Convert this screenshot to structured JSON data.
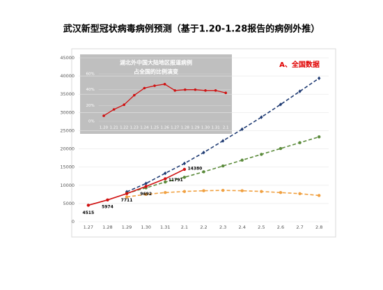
{
  "chart_data": [
    {
      "type": "line",
      "title": "武汉新型冠状病毒病例预测（基于1.20-1.28报告的病例外推）",
      "annotation": "A、全国数据",
      "categories": [
        "1.27",
        "1.28",
        "1.29",
        "1.30",
        "1.31",
        "2.1",
        "2.2",
        "2.3",
        "2.4",
        "2.5",
        "2.6",
        "2.7",
        "2.8"
      ],
      "ylim": [
        0,
        45000
      ],
      "yticks": [
        0,
        5000,
        10000,
        15000,
        20000,
        25000,
        30000,
        35000,
        40000,
        45000
      ],
      "grid": true,
      "series": [
        {
          "color": "#1f3b73",
          "dashed": true,
          "marker": "diamond",
          "values": [
            null,
            null,
            8200,
            10500,
            13300,
            16000,
            19000,
            22200,
            25400,
            28700,
            32200,
            35800,
            39400
          ]
        },
        {
          "color": "#5a8a3a",
          "dashed": true,
          "marker": "circle",
          "values": [
            null,
            null,
            7800,
            9300,
            10900,
            12200,
            13700,
            15300,
            16900,
            18500,
            20100,
            21700,
            23300
          ]
        },
        {
          "color": "#f0a040",
          "dashed": true,
          "marker": "circle",
          "values": [
            null,
            null,
            6800,
            7500,
            8000,
            8300,
            8500,
            8600,
            8500,
            8300,
            8000,
            7700,
            7200
          ]
        },
        {
          "color": "#d01010",
          "dashed": false,
          "marker": "circle",
          "data_labels": true,
          "values": [
            4515,
            5974,
            7711,
            9692,
            11791,
            14380,
            null,
            null,
            null,
            null,
            null,
            null,
            null
          ]
        }
      ]
    },
    {
      "type": "line",
      "title": "湖北外中国大陆地区报道病例",
      "subtitle": "占全国的比例演变",
      "categories": [
        "1.20",
        "1.21",
        "1.22",
        "1.23",
        "1.24",
        "1.25",
        "1.26",
        "1.27",
        "1.28",
        "1.29",
        "1.30",
        "1.31",
        "2.1"
      ],
      "ylim": [
        0,
        60
      ],
      "yticks": [
        {
          "value": 0,
          "label": "0%"
        },
        {
          "value": 20,
          "label": "20%"
        },
        {
          "value": 40,
          "label": "40%"
        },
        {
          "value": 60,
          "label": "60%"
        }
      ],
      "grid": true,
      "series": [
        {
          "color": "#d01010",
          "dashed": false,
          "marker": "circle",
          "values": [
            7,
            15,
            21,
            33,
            42,
            45,
            47,
            39,
            40,
            40,
            39,
            39,
            36
          ]
        }
      ]
    }
  ]
}
